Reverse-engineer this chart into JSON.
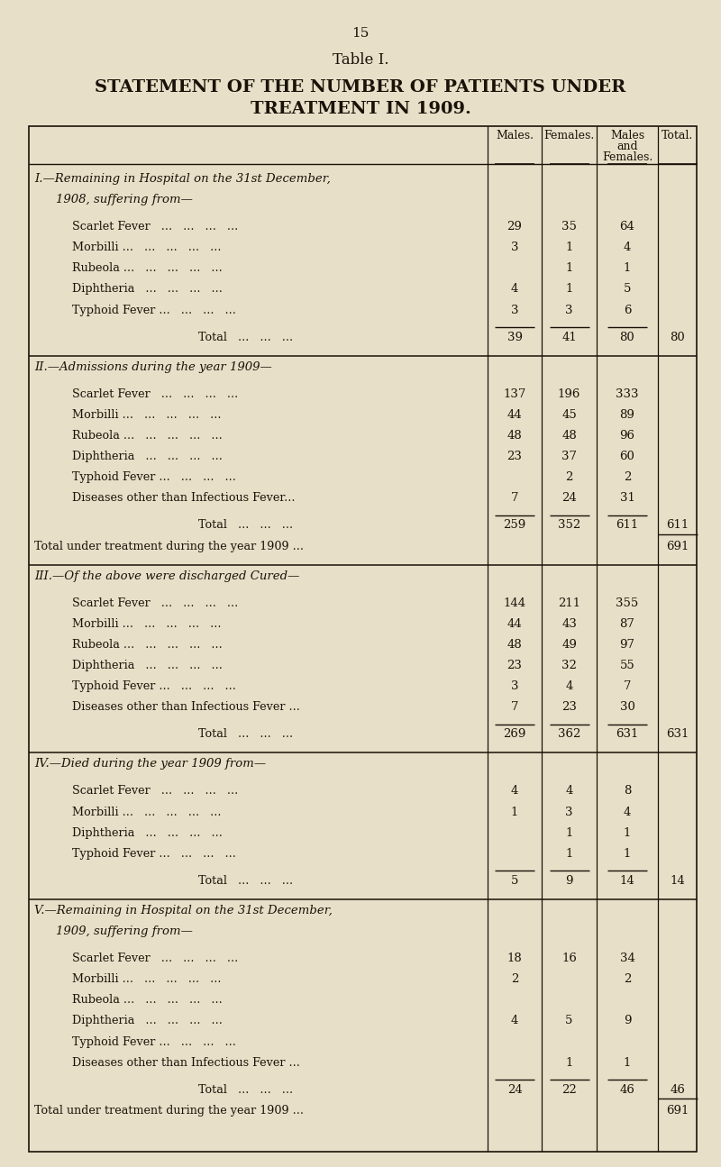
{
  "page_number": "15",
  "table_title": "Table I.",
  "main_title_line1": "STATEMENT OF THE NUMBER OF PATIENTS UNDER",
  "main_title_line2": "TREATMENT IN 1909.",
  "bg_color": "#e8dfc8",
  "sections": [
    {
      "id": "I",
      "heading_line1": "I.—Remaining in Hospital on the 31st December,",
      "heading_line2": "1908, suffering from—",
      "rows": [
        [
          "Scarlet Fever   ...   ...   ...   ...",
          "29",
          "35",
          "64",
          ""
        ],
        [
          "Morbilli ...   ...   ...   ...   ...",
          "3",
          "1",
          "4",
          ""
        ],
        [
          "Rubeola ...   ...   ...   ...   ...",
          "",
          "1",
          "1",
          ""
        ],
        [
          "Diphtheria   ...   ...   ...   ...",
          "4",
          "1",
          "5",
          ""
        ],
        [
          "Typhoid Fever ...   ...   ...   ...",
          "3",
          "3",
          "6",
          ""
        ]
      ],
      "total": [
        "Total   ...   ...   ...",
        "39",
        "41",
        "80",
        "80"
      ],
      "extra": null
    },
    {
      "id": "II",
      "heading_line1": "II.—Admissions during the year 1909—",
      "heading_line2": null,
      "rows": [
        [
          "Scarlet Fever   ...   ...   ...   ...",
          "137",
          "196",
          "333",
          ""
        ],
        [
          "Morbilli ...   ...   ...   ...   ...",
          "44",
          "45",
          "89",
          ""
        ],
        [
          "Rubeola ...   ...   ...   ...   ...",
          "48",
          "48",
          "96",
          ""
        ],
        [
          "Diphtheria   ...   ...   ...   ...",
          "23",
          "37",
          "60",
          ""
        ],
        [
          "Typhoid Fever ...   ...   ...   ...",
          "",
          "2",
          "2",
          ""
        ],
        [
          "Diseases other than Infectious Fever...",
          "7",
          "24",
          "31",
          ""
        ]
      ],
      "total": [
        "Total   ...   ...   ...",
        "259",
        "352",
        "611",
        "611"
      ],
      "extra": [
        "Total under treatment during the year 1909 ...",
        "",
        "",
        "",
        "691"
      ]
    },
    {
      "id": "III",
      "heading_line1": "III.—Of the above were discharged Cured—",
      "heading_line2": null,
      "rows": [
        [
          "Scarlet Fever   ...   ...   ...   ...",
          "144",
          "211",
          "355",
          ""
        ],
        [
          "Morbilli ...   ...   ...   ...   ...",
          "44",
          "43",
          "87",
          ""
        ],
        [
          "Rubeola ...   ...   ...   ...   ...",
          "48",
          "49",
          "97",
          ""
        ],
        [
          "Diphtheria   ...   ...   ...   ...",
          "23",
          "32",
          "55",
          ""
        ],
        [
          "Typhoid Fever ...   ...   ...   ...",
          "3",
          "4",
          "7",
          ""
        ],
        [
          "Diseases other than Infectious Fever ...",
          "7",
          "23",
          "30",
          ""
        ]
      ],
      "total": [
        "Total   ...   ...   ...",
        "269",
        "362",
        "631",
        "631"
      ],
      "extra": null
    },
    {
      "id": "IV",
      "heading_line1": "IV.—Died during the year 1909 from—",
      "heading_line2": null,
      "rows": [
        [
          "Scarlet Fever   ...   ...   ...   ...",
          "4",
          "4",
          "8",
          ""
        ],
        [
          "Morbilli ...   ...   ...   ...   ...",
          "1",
          "3",
          "4",
          ""
        ],
        [
          "Diphtheria   ...   ...   ...   ...",
          "",
          "1",
          "1",
          ""
        ],
        [
          "Typhoid Fever ...   ...   ...   ...",
          "",
          "1",
          "1",
          ""
        ]
      ],
      "total": [
        "Total   ...   ...   ...",
        "5",
        "9",
        "14",
        "14"
      ],
      "extra": null
    },
    {
      "id": "V",
      "heading_line1": "V.—Remaining in Hospital on the 31st December,",
      "heading_line2": "1909, suffering from—",
      "rows": [
        [
          "Scarlet Fever   ...   ...   ...   ...",
          "18",
          "16",
          "34",
          ""
        ],
        [
          "Morbilli ...   ...   ...   ...   ...",
          "2",
          "",
          "2",
          ""
        ],
        [
          "Rubeola ...   ...   ...   ...   ...",
          "",
          "",
          "",
          ""
        ],
        [
          "Diphtheria   ...   ...   ...   ...",
          "4",
          "5",
          "9",
          ""
        ],
        [
          "Typhoid Fever ...   ...   ...   ...",
          "",
          "",
          "",
          ""
        ],
        [
          "Diseases other than Infectious Fever ...",
          "",
          "1",
          "1",
          ""
        ]
      ],
      "total": [
        "Total   ...   ...   ...",
        "24",
        "22",
        "46",
        "46"
      ],
      "extra": [
        "Total under treatment during the year 1909 ...",
        "",
        "",
        "",
        "691"
      ]
    }
  ]
}
